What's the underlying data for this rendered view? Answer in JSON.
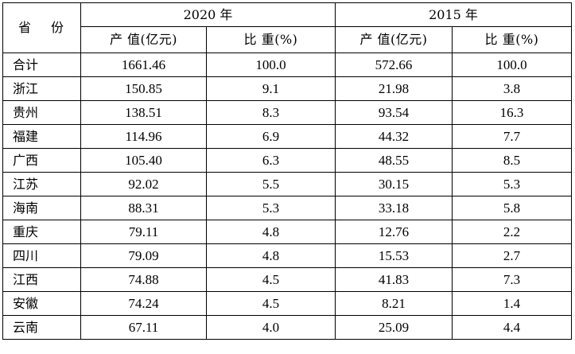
{
  "table": {
    "header": {
      "province_label": "省 份",
      "year_2020": "2020 年",
      "year_2015": "2015 年",
      "value_2020": "产  值(亿元)",
      "share_2020": "比  重(%)",
      "value_2015": "产  值(亿元)",
      "share_2015": "比  重(%)"
    },
    "rows": [
      {
        "province": "合计",
        "value_2020": "1661.46",
        "share_2020": "100.0",
        "value_2015": "572.66",
        "share_2015": "100.0"
      },
      {
        "province": "浙江",
        "value_2020": "150.85",
        "share_2020": "9.1",
        "value_2015": "21.98",
        "share_2015": "3.8"
      },
      {
        "province": "贵州",
        "value_2020": "138.51",
        "share_2020": "8.3",
        "value_2015": "93.54",
        "share_2015": "16.3"
      },
      {
        "province": "福建",
        "value_2020": "114.96",
        "share_2020": "6.9",
        "value_2015": "44.32",
        "share_2015": "7.7"
      },
      {
        "province": "广西",
        "value_2020": "105.40",
        "share_2020": "6.3",
        "value_2015": "48.55",
        "share_2015": "8.5"
      },
      {
        "province": "江苏",
        "value_2020": "92.02",
        "share_2020": "5.5",
        "value_2015": "30.15",
        "share_2015": "5.3"
      },
      {
        "province": "海南",
        "value_2020": "88.31",
        "share_2020": "5.3",
        "value_2015": "33.18",
        "share_2015": "5.8"
      },
      {
        "province": "重庆",
        "value_2020": "79.11",
        "share_2020": "4.8",
        "value_2015": "12.76",
        "share_2015": "2.2"
      },
      {
        "province": "四川",
        "value_2020": "79.09",
        "share_2020": "4.8",
        "value_2015": "15.53",
        "share_2015": "2.7"
      },
      {
        "province": "江西",
        "value_2020": "74.88",
        "share_2020": "4.5",
        "value_2015": "41.83",
        "share_2015": "7.3"
      },
      {
        "province": "安徽",
        "value_2020": "74.24",
        "share_2020": "4.5",
        "value_2015": "8.21",
        "share_2015": "1.4"
      },
      {
        "province": "云南",
        "value_2020": "67.11",
        "share_2020": "4.0",
        "value_2015": "25.09",
        "share_2015": "4.4"
      }
    ]
  }
}
